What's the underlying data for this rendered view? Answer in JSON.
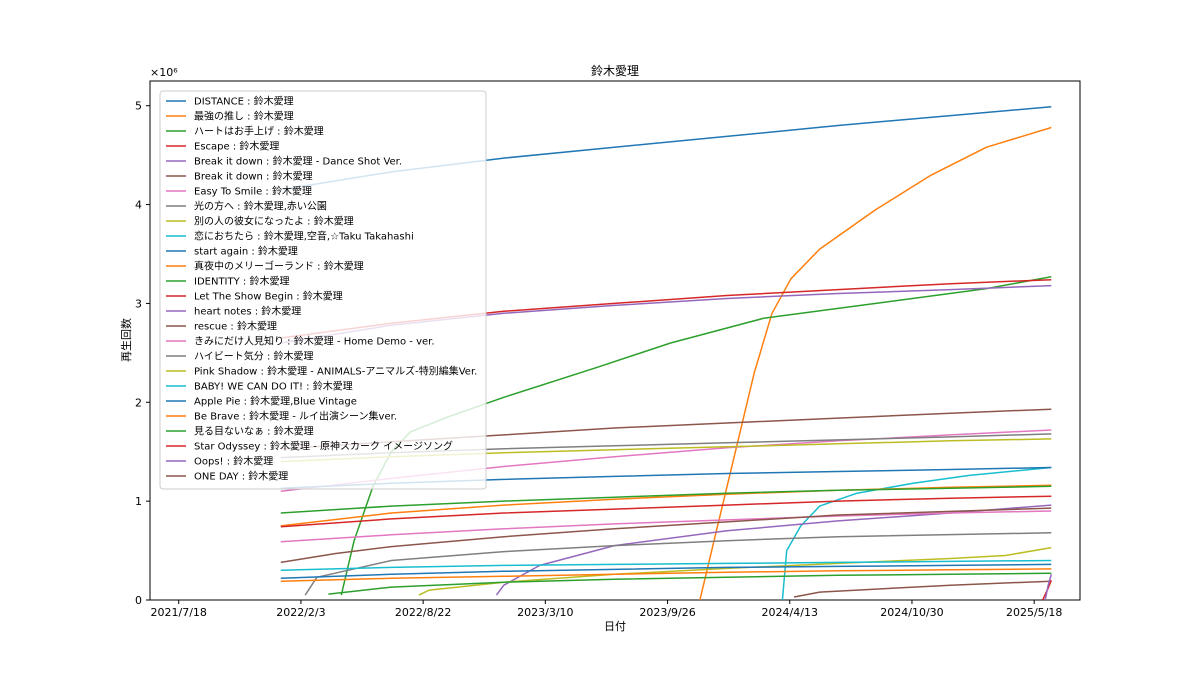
{
  "chart_data": {
    "type": "line",
    "title": "鈴木愛理",
    "xlabel": "日付",
    "ylabel": "再生回数",
    "y_offset_label": "×10⁶",
    "y_scale": 1000000,
    "xlim": [
      "2021-06-01",
      "2025-08-01"
    ],
    "ylim": [
      0,
      5250000
    ],
    "x_ticks": [
      "2021-07-18",
      "2022-02-03",
      "2022-08-22",
      "2023-03-10",
      "2023-09-26",
      "2024-04-13",
      "2024-10-30",
      "2025-05-18"
    ],
    "x_tick_labels": [
      "2021/7/18",
      "2022/2/3",
      "2022/8/22",
      "2023/3/10",
      "2023/9/26",
      "2024/4/13",
      "2024/10/30",
      "2025/5/18"
    ],
    "y_ticks": [
      0,
      1000000,
      2000000,
      3000000,
      4000000,
      5000000
    ],
    "y_tick_labels": [
      "0",
      "1",
      "2",
      "3",
      "4",
      "5"
    ],
    "legend_position": "upper-left",
    "series": [
      {
        "name": "DISTANCE : 鈴木愛理",
        "color": "#1f77b4",
        "x": [
          "2022-01-01",
          "2022-07-01",
          "2023-01-01",
          "2023-07-01",
          "2024-01-01",
          "2024-07-01",
          "2025-01-01",
          "2025-06-15"
        ],
        "y": [
          4150000,
          4330000,
          4470000,
          4580000,
          4690000,
          4800000,
          4900000,
          4990000
        ]
      },
      {
        "name": "最強の推し : 鈴木愛理",
        "color": "#ff7f0e",
        "x": [
          "2023-11-18",
          "2023-12-15",
          "2024-01-15",
          "2024-02-15",
          "2024-03-15",
          "2024-04-15",
          "2024-06-01",
          "2024-09-01",
          "2024-12-01",
          "2025-03-01",
          "2025-06-15"
        ],
        "y": [
          0,
          700000,
          1500000,
          2300000,
          2900000,
          3250000,
          3550000,
          3950000,
          4300000,
          4580000,
          4780000
        ]
      },
      {
        "name": "ハートはお手上げ : 鈴木愛理",
        "color": "#2ca02c",
        "x": [
          "2022-04-10",
          "2022-05-01",
          "2022-06-01",
          "2022-07-01",
          "2022-08-01",
          "2022-10-01",
          "2023-01-01",
          "2023-06-01",
          "2023-10-01",
          "2024-03-01",
          "2024-09-01",
          "2025-03-01",
          "2025-06-15"
        ],
        "y": [
          50000,
          600000,
          1150000,
          1500000,
          1700000,
          1850000,
          2050000,
          2350000,
          2600000,
          2850000,
          3000000,
          3150000,
          3270000
        ]
      },
      {
        "name": "Escape : 鈴木愛理",
        "color": "#d62728",
        "x": [
          "2022-01-01",
          "2022-07-01",
          "2023-01-01",
          "2023-07-01",
          "2024-01-01",
          "2024-07-01",
          "2025-01-01",
          "2025-06-15"
        ],
        "y": [
          2650000,
          2800000,
          2920000,
          3000000,
          3080000,
          3140000,
          3200000,
          3240000
        ]
      },
      {
        "name": "Break it down : 鈴木愛理 - Dance Shot Ver.",
        "color": "#9467bd",
        "x": [
          "2022-01-01",
          "2022-07-01",
          "2023-01-01",
          "2023-07-01",
          "2024-01-01",
          "2024-07-01",
          "2025-01-01",
          "2025-06-15"
        ],
        "y": [
          2600000,
          2780000,
          2900000,
          2980000,
          3050000,
          3100000,
          3140000,
          3180000
        ]
      },
      {
        "name": "Break it down : 鈴木愛理",
        "color": "#8c564b",
        "x": [
          "2022-01-01",
          "2022-07-01",
          "2023-01-01",
          "2023-07-01",
          "2024-01-01",
          "2024-07-01",
          "2025-01-01",
          "2025-06-15"
        ],
        "y": [
          1530000,
          1600000,
          1670000,
          1740000,
          1790000,
          1840000,
          1890000,
          1930000
        ]
      },
      {
        "name": "Easy To Smile : 鈴木愛理",
        "color": "#e377c2",
        "x": [
          "2022-01-01",
          "2022-07-01",
          "2023-01-01",
          "2023-07-01",
          "2024-01-01",
          "2024-07-01",
          "2025-01-01",
          "2025-06-15"
        ],
        "y": [
          1100000,
          1230000,
          1350000,
          1450000,
          1540000,
          1610000,
          1670000,
          1720000
        ]
      },
      {
        "name": "光の方へ : 鈴木愛理,赤い公園",
        "color": "#7f7f7f",
        "x": [
          "2022-01-01",
          "2022-07-01",
          "2023-01-01",
          "2023-07-01",
          "2024-01-01",
          "2024-07-01",
          "2025-01-01",
          "2025-06-15"
        ],
        "y": [
          1440000,
          1490000,
          1530000,
          1560000,
          1590000,
          1620000,
          1650000,
          1680000
        ]
      },
      {
        "name": "別の人の彼女になったよ : 鈴木愛理",
        "color": "#bcbd22",
        "x": [
          "2022-01-01",
          "2022-07-01",
          "2023-01-01",
          "2023-07-01",
          "2024-01-01",
          "2024-07-01",
          "2025-01-01",
          "2025-06-15"
        ],
        "y": [
          1400000,
          1450000,
          1490000,
          1520000,
          1550000,
          1580000,
          1610000,
          1630000
        ]
      },
      {
        "name": "恋におちたら : 鈴木愛理,空音,☆Taku Takahashi",
        "color": "#17becf",
        "x": [
          "2024-04-01",
          "2024-04-08",
          "2024-05-01",
          "2024-06-01",
          "2024-08-01",
          "2024-11-01",
          "2025-02-01",
          "2025-06-15"
        ],
        "y": [
          0,
          500000,
          750000,
          950000,
          1080000,
          1180000,
          1260000,
          1340000
        ]
      },
      {
        "name": "start again : 鈴木愛理",
        "color": "#1f77b4",
        "x": [
          "2022-01-01",
          "2022-07-01",
          "2023-01-01",
          "2023-07-01",
          "2024-01-01",
          "2024-07-01",
          "2025-01-01",
          "2025-06-15"
        ],
        "y": [
          1130000,
          1180000,
          1220000,
          1250000,
          1280000,
          1300000,
          1320000,
          1340000
        ]
      },
      {
        "name": "真夜中のメリーゴーランド : 鈴木愛理",
        "color": "#ff7f0e",
        "x": [
          "2022-01-01",
          "2022-07-01",
          "2023-01-01",
          "2023-07-01",
          "2024-01-01",
          "2024-07-01",
          "2025-01-01",
          "2025-06-15"
        ],
        "y": [
          750000,
          880000,
          960000,
          1020000,
          1070000,
          1110000,
          1140000,
          1160000
        ]
      },
      {
        "name": "IDENTITY : 鈴木愛理",
        "color": "#2ca02c",
        "x": [
          "2022-01-01",
          "2022-07-01",
          "2023-01-01",
          "2023-07-01",
          "2024-01-01",
          "2024-07-01",
          "2025-01-01",
          "2025-06-15"
        ],
        "y": [
          880000,
          950000,
          1000000,
          1040000,
          1080000,
          1110000,
          1130000,
          1150000
        ]
      },
      {
        "name": "Let The Show Begin : 鈴木愛理",
        "color": "#d62728",
        "x": [
          "2022-01-01",
          "2022-07-01",
          "2023-01-01",
          "2023-07-01",
          "2024-01-01",
          "2024-07-01",
          "2025-01-01",
          "2025-06-15"
        ],
        "y": [
          740000,
          820000,
          880000,
          920000,
          960000,
          1000000,
          1030000,
          1050000
        ]
      },
      {
        "name": "heart notes : 鈴木愛理",
        "color": "#9467bd",
        "x": [
          "2022-12-20",
          "2023-01-01",
          "2023-03-01",
          "2023-07-01",
          "2024-01-01",
          "2024-07-01",
          "2025-01-01",
          "2025-06-15"
        ],
        "y": [
          50000,
          150000,
          350000,
          550000,
          700000,
          800000,
          880000,
          960000
        ]
      },
      {
        "name": "rescue : 鈴木愛理",
        "color": "#8c564b",
        "x": [
          "2024-04-20",
          "2024-06-01",
          "2024-10-01",
          "2025-01-01",
          "2025-06-15"
        ],
        "y": [
          30000,
          80000,
          120000,
          150000,
          190000
        ]
      },
      {
        "name": "きみにだけ人見知り : 鈴木愛理 - Home Demo - ver.",
        "color": "#e377c2",
        "x": [
          "2022-01-01",
          "2022-07-01",
          "2023-01-01",
          "2023-07-01",
          "2024-01-01",
          "2024-07-01",
          "2025-01-01",
          "2025-06-15"
        ],
        "y": [
          590000,
          660000,
          720000,
          770000,
          810000,
          850000,
          880000,
          900000
        ]
      },
      {
        "name": "ハイビート気分 : 鈴木愛理",
        "color": "#7f7f7f",
        "x": [
          "2022-02-10",
          "2022-03-01",
          "2022-07-01",
          "2023-01-01",
          "2023-07-01",
          "2024-01-01",
          "2024-07-01",
          "2025-06-15"
        ],
        "y": [
          50000,
          230000,
          400000,
          490000,
          550000,
          600000,
          640000,
          680000
        ]
      },
      {
        "name": "Pink Shadow : 鈴木愛理 - ANIMALS-アニマルズ-特別編集Ver.",
        "color": "#bcbd22",
        "x": [
          "2022-08-15",
          "2022-09-01",
          "2023-01-01",
          "2023-07-01",
          "2024-01-01",
          "2024-07-01",
          "2025-01-01",
          "2025-04-01",
          "2025-06-15"
        ],
        "y": [
          50000,
          100000,
          180000,
          260000,
          320000,
          370000,
          420000,
          450000,
          530000
        ]
      },
      {
        "name": "BABY! WE CAN DO IT! : 鈴木愛理",
        "color": "#17becf",
        "x": [
          "2022-01-01",
          "2022-07-01",
          "2023-01-01",
          "2023-07-01",
          "2024-01-01",
          "2024-07-01",
          "2025-01-01",
          "2025-06-15"
        ],
        "y": [
          300000,
          330000,
          350000,
          360000,
          370000,
          380000,
          390000,
          400000
        ]
      },
      {
        "name": "Apple Pie : 鈴木愛理,Blue Vintage",
        "color": "#1f77b4",
        "x": [
          "2022-01-01",
          "2022-07-01",
          "2023-01-01",
          "2023-07-01",
          "2024-01-01",
          "2024-07-01",
          "2025-01-01",
          "2025-06-15"
        ],
        "y": [
          220000,
          260000,
          290000,
          310000,
          330000,
          340000,
          350000,
          360000
        ]
      },
      {
        "name": "Be Brave : 鈴木愛理 - ルイ出演シーン集ver.",
        "color": "#ff7f0e",
        "x": [
          "2022-01-01",
          "2022-07-01",
          "2023-01-01",
          "2023-07-01",
          "2024-01-01",
          "2024-07-01",
          "2025-01-01",
          "2025-06-15"
        ],
        "y": [
          190000,
          220000,
          240000,
          260000,
          280000,
          295000,
          305000,
          315000
        ]
      },
      {
        "name": "見る目ないなぁ : 鈴木愛理",
        "color": "#2ca02c",
        "x": [
          "2022-03-20",
          "2022-07-01",
          "2023-01-01",
          "2023-07-01",
          "2024-01-01",
          "2024-07-01",
          "2025-01-01",
          "2025-06-15"
        ],
        "y": [
          60000,
          130000,
          180000,
          210000,
          230000,
          250000,
          260000,
          270000
        ]
      },
      {
        "name": "Star Odyssey : 鈴木愛理 - 原神スカーク イメージソング",
        "color": "#d62728",
        "x": [
          "2025-06-01",
          "2025-06-10",
          "2025-06-15"
        ],
        "y": [
          0,
          120000,
          200000
        ]
      },
      {
        "name": "Oops! : 鈴木愛理",
        "color": "#9467bd",
        "x": [
          "2025-06-05",
          "2025-06-10",
          "2025-06-15"
        ],
        "y": [
          0,
          150000,
          260000
        ]
      },
      {
        "name": "ONE DAY : 鈴木愛理",
        "color": "#8c564b",
        "x": [
          "2022-01-01",
          "2022-04-01",
          "2022-07-01",
          "2023-01-01",
          "2023-07-01",
          "2024-01-01",
          "2024-07-01",
          "2025-06-15"
        ],
        "y": [
          380000,
          470000,
          540000,
          640000,
          720000,
          790000,
          860000,
          930000
        ]
      }
    ]
  }
}
